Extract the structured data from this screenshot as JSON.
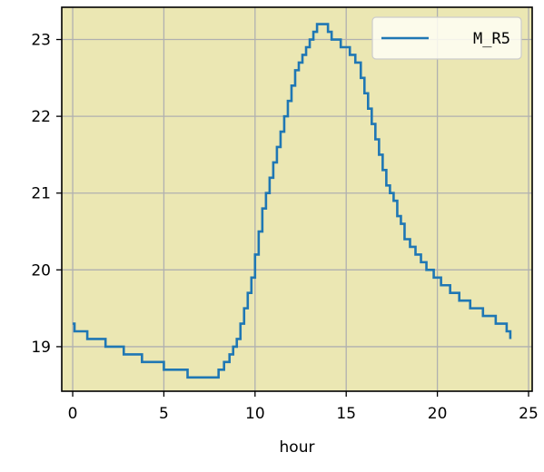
{
  "chart_data": {
    "type": "line",
    "title": "",
    "xlabel": "hour",
    "ylabel": "",
    "xlim": [
      -0.6,
      25.2
    ],
    "ylim": [
      18.42,
      23.42
    ],
    "xticks": [
      0,
      5,
      10,
      15,
      20,
      25
    ],
    "yticks": [
      19,
      20,
      21,
      22,
      23
    ],
    "grid": true,
    "legend_position": "top-right",
    "colors": {
      "plot_background": "#ebe7b3",
      "series": "#1f77b4",
      "grid": "#b0b0b0"
    },
    "series": [
      {
        "name": "M_R5",
        "step": true,
        "x": [
          0,
          0.1,
          0.8,
          1.8,
          2.8,
          3.8,
          5.0,
          6.3,
          8.0,
          8.3,
          8.6,
          8.8,
          9.0,
          9.2,
          9.4,
          9.6,
          9.8,
          10.0,
          10.2,
          10.4,
          10.6,
          10.8,
          11.0,
          11.2,
          11.4,
          11.6,
          11.8,
          12.0,
          12.2,
          12.4,
          12.6,
          12.8,
          13.0,
          13.2,
          13.4,
          13.6,
          14.0,
          14.2,
          14.7,
          15.2,
          15.5,
          15.8,
          16.0,
          16.2,
          16.4,
          16.6,
          16.8,
          17.0,
          17.2,
          17.4,
          17.6,
          17.8,
          18.0,
          18.2,
          18.5,
          18.8,
          19.1,
          19.4,
          19.8,
          20.2,
          20.7,
          21.2,
          21.8,
          22.5,
          23.2,
          23.8,
          24.0
        ],
        "y": [
          19.3,
          19.2,
          19.1,
          19.0,
          18.9,
          18.8,
          18.7,
          18.6,
          18.7,
          18.8,
          18.9,
          19.0,
          19.1,
          19.3,
          19.5,
          19.7,
          19.9,
          20.2,
          20.5,
          20.8,
          21.0,
          21.2,
          21.4,
          21.6,
          21.8,
          22.0,
          22.2,
          22.4,
          22.6,
          22.7,
          22.8,
          22.9,
          23.0,
          23.1,
          23.2,
          23.2,
          23.1,
          23.0,
          22.9,
          22.8,
          22.7,
          22.5,
          22.3,
          22.1,
          21.9,
          21.7,
          21.5,
          21.3,
          21.1,
          21.0,
          20.9,
          20.7,
          20.6,
          20.4,
          20.3,
          20.2,
          20.1,
          20.0,
          19.9,
          19.8,
          19.7,
          19.6,
          19.5,
          19.4,
          19.3,
          19.2,
          19.1
        ]
      }
    ]
  }
}
